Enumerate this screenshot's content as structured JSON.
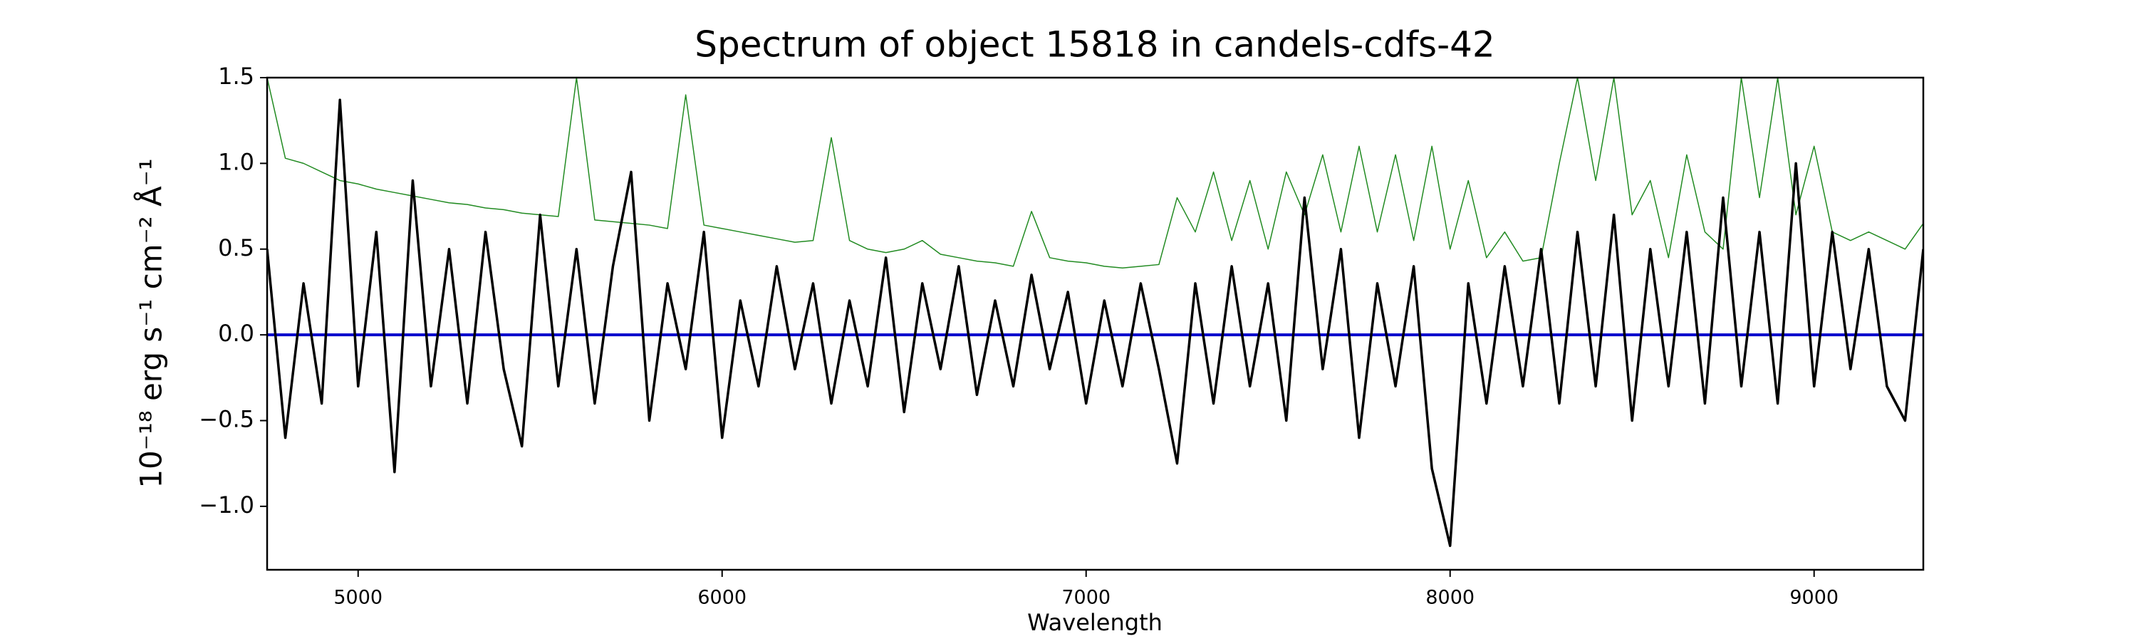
{
  "chart_data": {
    "type": "line",
    "title": "Spectrum of object 15818 in candels-cdfs-42",
    "xlabel": "Wavelength",
    "ylabel": "10⁻¹⁸ erg s⁻¹ cm⁻² Å⁻¹",
    "xlim": [
      4750,
      9300
    ],
    "ylim": [
      -1.37,
      1.5
    ],
    "xticks": [
      5000,
      6000,
      7000,
      8000,
      9000
    ],
    "yticks": [
      {
        "value": -1.0,
        "label": "−1.0"
      },
      {
        "value": -0.5,
        "label": "−0.5"
      },
      {
        "value": 0.0,
        "label": "0.0"
      },
      {
        "value": 0.5,
        "label": "0.5"
      },
      {
        "value": 1.0,
        "label": "1.0"
      },
      {
        "value": 1.5,
        "label": "1.5"
      }
    ],
    "x": [
      4750,
      4800,
      4850,
      4900,
      4950,
      5000,
      5050,
      5100,
      5150,
      5200,
      5250,
      5300,
      5350,
      5400,
      5450,
      5500,
      5550,
      5600,
      5650,
      5700,
      5750,
      5800,
      5850,
      5900,
      5950,
      6000,
      6050,
      6100,
      6150,
      6200,
      6250,
      6300,
      6350,
      6400,
      6450,
      6500,
      6550,
      6600,
      6650,
      6700,
      6750,
      6800,
      6850,
      6900,
      6950,
      7000,
      7050,
      7100,
      7150,
      7200,
      7250,
      7300,
      7350,
      7400,
      7450,
      7500,
      7550,
      7600,
      7650,
      7700,
      7750,
      7800,
      7850,
      7900,
      7950,
      8000,
      8050,
      8100,
      8150,
      8200,
      8250,
      8300,
      8350,
      8400,
      8450,
      8500,
      8550,
      8600,
      8650,
      8700,
      8750,
      8800,
      8850,
      8900,
      8950,
      9000,
      9050,
      9100,
      9150,
      9200,
      9250,
      9300
    ],
    "series": [
      {
        "color": "#228b22",
        "width": 1.5,
        "values": [
          1.5,
          1.03,
          1.0,
          0.95,
          0.9,
          0.88,
          0.85,
          0.83,
          0.81,
          0.79,
          0.77,
          0.76,
          0.74,
          0.73,
          0.71,
          0.7,
          0.69,
          1.5,
          0.67,
          0.66,
          0.65,
          0.64,
          0.62,
          1.4,
          0.64,
          0.62,
          0.6,
          0.58,
          0.56,
          0.54,
          0.55,
          1.15,
          0.55,
          0.5,
          0.48,
          0.5,
          0.55,
          0.47,
          0.45,
          0.43,
          0.42,
          0.4,
          0.72,
          0.45,
          0.43,
          0.42,
          0.4,
          0.39,
          0.4,
          0.41,
          0.8,
          0.6,
          0.95,
          0.55,
          0.9,
          0.5,
          0.95,
          0.7,
          1.05,
          0.6,
          1.1,
          0.6,
          1.05,
          0.55,
          1.1,
          0.5,
          0.9,
          0.45,
          0.6,
          0.43,
          0.45,
          1.0,
          1.5,
          0.9,
          1.5,
          0.7,
          0.9,
          0.45,
          1.05,
          0.6,
          0.5,
          1.5,
          0.8,
          1.5,
          0.7,
          1.1,
          0.6,
          0.55,
          0.6,
          0.55,
          0.5,
          0.65
        ]
      },
      {
        "color": "#0000cc",
        "width": 4,
        "values": [
          0,
          0,
          0,
          0,
          0,
          0,
          0,
          0,
          0,
          0,
          0,
          0,
          0,
          0,
          0,
          0,
          0,
          0,
          0,
          0,
          0,
          0,
          0,
          0,
          0,
          0,
          0,
          0,
          0,
          0,
          0,
          0,
          0,
          0,
          0,
          0,
          0,
          0,
          0,
          0,
          0,
          0,
          0,
          0,
          0,
          0,
          0,
          0,
          0,
          0,
          0,
          0,
          0,
          0,
          0,
          0,
          0,
          0,
          0,
          0,
          0,
          0,
          0,
          0,
          0,
          0,
          0,
          0,
          0,
          0,
          0,
          0,
          0,
          0,
          0,
          0,
          0,
          0,
          0,
          0,
          0,
          0,
          0,
          0,
          0,
          0,
          0,
          0,
          0,
          0,
          0,
          0
        ]
      },
      {
        "color": "#000000",
        "width": 3.5,
        "values": [
          0.5,
          -0.6,
          0.3,
          -0.4,
          1.37,
          -0.3,
          0.6,
          -0.8,
          0.9,
          -0.3,
          0.5,
          -0.4,
          0.6,
          -0.2,
          -0.65,
          0.7,
          -0.3,
          0.5,
          -0.4,
          0.4,
          0.95,
          -0.5,
          0.3,
          -0.2,
          0.6,
          -0.6,
          0.2,
          -0.3,
          0.4,
          -0.2,
          0.3,
          -0.4,
          0.2,
          -0.3,
          0.45,
          -0.45,
          0.3,
          -0.2,
          0.4,
          -0.35,
          0.2,
          -0.3,
          0.35,
          -0.2,
          0.25,
          -0.4,
          0.2,
          -0.3,
          0.3,
          -0.2,
          -0.75,
          0.3,
          -0.4,
          0.4,
          -0.3,
          0.3,
          -0.5,
          0.8,
          -0.2,
          0.5,
          -0.6,
          0.3,
          -0.3,
          0.4,
          -0.78,
          -1.23,
          0.3,
          -0.4,
          0.4,
          -0.3,
          0.5,
          -0.4,
          0.6,
          -0.3,
          0.7,
          -0.5,
          0.5,
          -0.3,
          0.6,
          -0.4,
          0.8,
          -0.3,
          0.6,
          -0.4,
          1.0,
          -0.3,
          0.6,
          -0.2,
          0.5,
          -0.3,
          -0.5,
          0.5
        ]
      }
    ]
  }
}
